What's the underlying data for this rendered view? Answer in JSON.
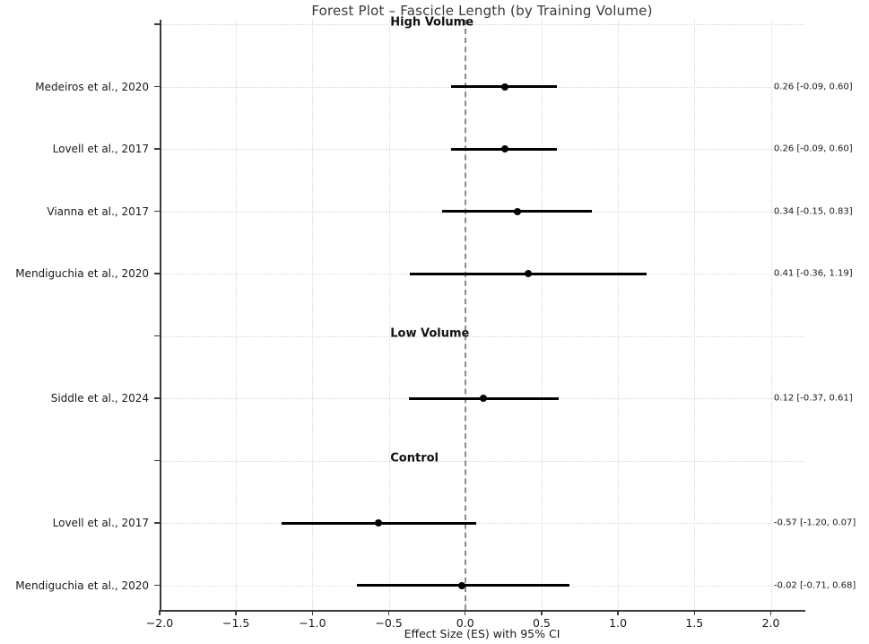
{
  "chart_data": {
    "type": "scatter",
    "subtype": "forest-plot",
    "title": "Forest Plot – Fascicle Length (by Training Volume)",
    "xlabel": "Effect Size (ES) with 95% CI",
    "xlim": [
      -2.0,
      2.22
    ],
    "grid": true,
    "zero_reference_line": 0.0,
    "xticks": [
      {
        "value": -2.0,
        "label": "−2.0"
      },
      {
        "value": -1.5,
        "label": "−1.5"
      },
      {
        "value": -1.0,
        "label": "−1.0"
      },
      {
        "value": -0.5,
        "label": "−0.5"
      },
      {
        "value": 0.0,
        "label": "0.0"
      },
      {
        "value": 0.5,
        "label": "0.5"
      },
      {
        "value": 1.0,
        "label": "1.0"
      },
      {
        "value": 1.5,
        "label": "1.5"
      },
      {
        "value": 2.0,
        "label": "2.0"
      }
    ],
    "groups": [
      {
        "label": "High Volume",
        "studies": [
          {
            "label": "Medeiros et al., 2020",
            "es": 0.26,
            "ci_low": -0.09,
            "ci_high": 0.6,
            "annotation": "0.26 [-0.09, 0.60]"
          },
          {
            "label": "Lovell et al., 2017",
            "es": 0.26,
            "ci_low": -0.09,
            "ci_high": 0.6,
            "annotation": "0.26 [-0.09, 0.60]"
          },
          {
            "label": "Vianna et al., 2017",
            "es": 0.34,
            "ci_low": -0.15,
            "ci_high": 0.83,
            "annotation": "0.34 [-0.15, 0.83]"
          },
          {
            "label": "Mendiguchia et al., 2020",
            "es": 0.41,
            "ci_low": -0.36,
            "ci_high": 1.19,
            "annotation": "0.41 [-0.36, 1.19]"
          }
        ]
      },
      {
        "label": "Low Volume",
        "studies": [
          {
            "label": "Siddle et al., 2024",
            "es": 0.12,
            "ci_low": -0.37,
            "ci_high": 0.61,
            "annotation": "0.12 [-0.37, 0.61]"
          }
        ]
      },
      {
        "label": "Control",
        "studies": [
          {
            "label": "Lovell et al., 2017",
            "es": -0.57,
            "ci_low": -1.2,
            "ci_high": 0.07,
            "annotation": "-0.57 [-1.20, 0.07]"
          },
          {
            "label": "Mendiguchia et al., 2020",
            "es": -0.02,
            "ci_low": -0.71,
            "ci_high": 0.68,
            "annotation": "-0.02 [-0.71, 0.68]"
          }
        ]
      }
    ],
    "appearance": {
      "marker_color": "#000000",
      "ci_color": "#000000",
      "zero_line_color": "#8a8a8a",
      "grid_color": "#d8d8d8",
      "spine_color": "#3a3a3a",
      "text_color": "#1a1a1a",
      "background": "#ffffff"
    }
  }
}
